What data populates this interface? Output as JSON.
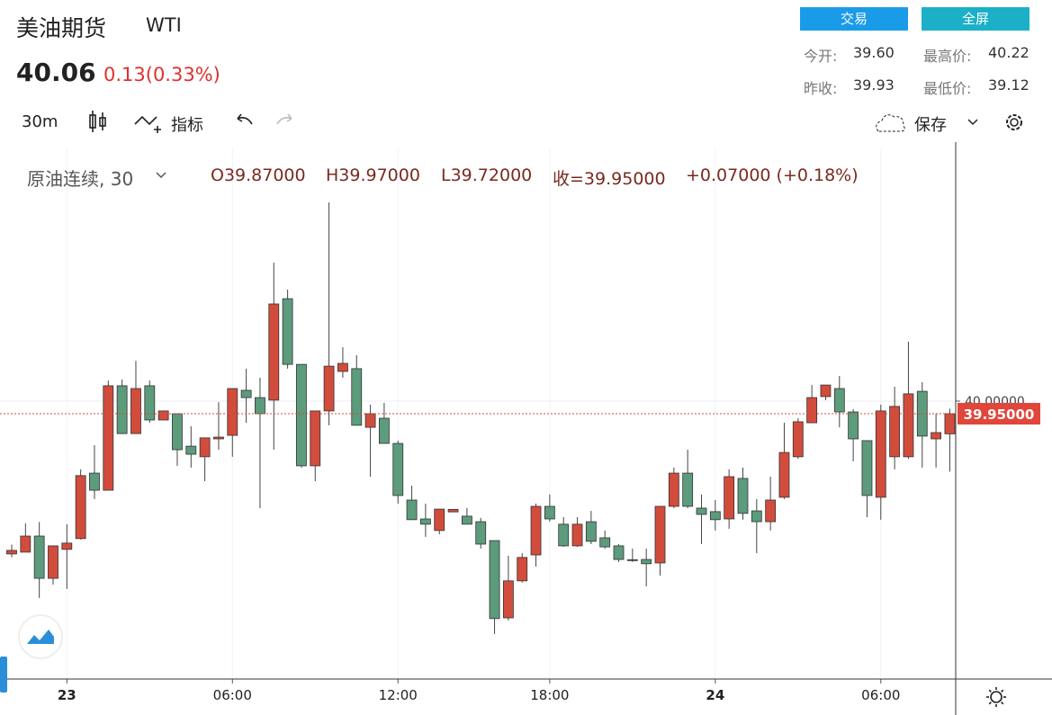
{
  "header": {
    "name": "美油期货",
    "symbol": "WTI",
    "price": "40.06",
    "change": "0.13(0.33%)",
    "buttons": [
      "交易",
      "全屏"
    ],
    "stats": [
      {
        "label": "今开:",
        "value": "39.60"
      },
      {
        "label": "最高价:",
        "value": "40.22"
      },
      {
        "label": "昨收:",
        "value": "39.93"
      },
      {
        "label": "最低价:",
        "value": "39.12"
      }
    ]
  },
  "toolbar": {
    "interval": "30m",
    "indicators": "指标",
    "save": "保存"
  },
  "chart_data": {
    "type": "candlestick",
    "legend": {
      "title": "原油连续, 30",
      "open": "O39.87000",
      "high": "H39.97000",
      "low": "L39.72000",
      "close": "收=39.95000",
      "change": "+0.07000 (+0.18%)"
    },
    "categories": [
      null,
      null,
      null,
      null,
      "23",
      null,
      null,
      null,
      null,
      null,
      null,
      null,
      null,
      null,
      null,
      null,
      "06:00",
      null,
      null,
      null,
      null,
      null,
      null,
      null,
      null,
      null,
      null,
      null,
      "12:00",
      null,
      null,
      null,
      null,
      null,
      null,
      null,
      null,
      null,
      null,
      "18:00",
      null,
      null,
      null,
      null,
      null,
      null,
      null,
      null,
      null,
      null,
      null,
      "24",
      null,
      null,
      null,
      null,
      null,
      null,
      null,
      null,
      null,
      null,
      null,
      "06:00",
      null,
      null,
      null,
      null,
      null
    ],
    "open": [
      39.393,
      39.4,
      39.464,
      39.296,
      39.411,
      39.454,
      39.714,
      39.646,
      40.061,
      39.871,
      40.061,
      39.925,
      39.95,
      39.821,
      39.779,
      39.85,
      39.864,
      40.043,
      40.014,
      40.004,
      40.407,
      40.146,
      39.743,
      39.961,
      40.118,
      40.129,
      39.896,
      39.932,
      39.832,
      39.607,
      39.532,
      39.486,
      39.56,
      39.543,
      39.521,
      39.446,
      39.139,
      39.286,
      39.389,
      39.582,
      39.511,
      39.425,
      39.521,
      39.457,
      39.425,
      39.37,
      39.371,
      39.357,
      39.582,
      39.714,
      39.575,
      39.561,
      39.532,
      39.693,
      39.564,
      39.521,
      39.618,
      39.779,
      39.914,
      40.018,
      40.05,
      39.957,
      39.843,
      39.618,
      39.779,
      39.779,
      40.039,
      39.85,
      39.87
    ],
    "high": [
      39.43,
      39.514,
      39.52,
      39.425,
      39.511,
      39.729,
      39.825,
      40.082,
      40.086,
      40.16,
      40.082,
      39.961,
      39.95,
      39.9,
      39.854,
      39.996,
      40.05,
      40.129,
      40.093,
      40.55,
      40.443,
      40.146,
      39.961,
      40.789,
      40.214,
      40.182,
      39.986,
      39.993,
      39.843,
      39.664,
      39.593,
      39.571,
      39.57,
      39.575,
      39.536,
      39.446,
      39.386,
      39.396,
      39.593,
      39.629,
      39.539,
      39.539,
      39.564,
      39.486,
      39.432,
      39.414,
      39.414,
      39.582,
      39.736,
      39.807,
      39.629,
      39.607,
      39.729,
      39.736,
      39.611,
      39.7,
      39.914,
      39.932,
      40.064,
      40.064,
      40.1,
      39.968,
      39.843,
      39.986,
      40.057,
      40.236,
      40.075,
      39.95,
      39.97
    ],
    "low": [
      39.38,
      39.4,
      39.218,
      39.271,
      39.254,
      39.45,
      39.611,
      39.646,
      39.871,
      39.871,
      39.914,
      39.925,
      39.743,
      39.736,
      39.682,
      39.807,
      39.779,
      39.914,
      39.575,
      39.807,
      40.129,
      39.736,
      39.682,
      39.904,
      40.093,
      39.904,
      39.7,
      39.832,
      39.593,
      39.529,
      39.461,
      39.471,
      39.56,
      39.511,
      39.414,
      39.075,
      39.129,
      39.279,
      39.343,
      39.521,
      39.421,
      39.421,
      39.432,
      39.414,
      39.361,
      39.361,
      39.264,
      39.307,
      39.575,
      39.575,
      39.432,
      39.486,
      39.493,
      39.529,
      39.396,
      39.486,
      39.611,
      39.771,
      39.914,
      40.004,
      39.896,
      39.761,
      39.539,
      39.529,
      39.729,
      39.771,
      39.736,
      39.736,
      39.72
    ],
    "close": [
      39.407,
      39.464,
      39.296,
      39.425,
      39.436,
      39.704,
      39.646,
      40.061,
      39.871,
      40.05,
      39.925,
      39.961,
      39.807,
      39.789,
      39.854,
      39.857,
      40.05,
      40.014,
      39.95,
      40.386,
      40.146,
      39.743,
      39.961,
      40.139,
      40.15,
      39.904,
      39.95,
      39.832,
      39.625,
      39.529,
      39.511,
      39.571,
      39.57,
      39.511,
      39.432,
      39.136,
      39.286,
      39.379,
      39.582,
      39.532,
      39.425,
      39.511,
      39.443,
      39.421,
      39.371,
      39.37,
      39.354,
      39.582,
      39.714,
      39.582,
      39.55,
      39.529,
      39.7,
      39.554,
      39.521,
      39.607,
      39.796,
      39.918,
      40.014,
      40.064,
      39.957,
      39.85,
      39.625,
      39.961,
      39.979,
      40.029,
      39.861,
      39.875,
      39.95
    ],
    "up_color": "#d24c3c",
    "down_color": "#5c9b7c",
    "ylim": [
      38.896,
      41.004
    ],
    "yticks": [
      {
        "value": 40,
        "label": "40.00000"
      }
    ],
    "last_price": {
      "value": 39.95,
      "label": "39.95000"
    },
    "grid": true
  }
}
